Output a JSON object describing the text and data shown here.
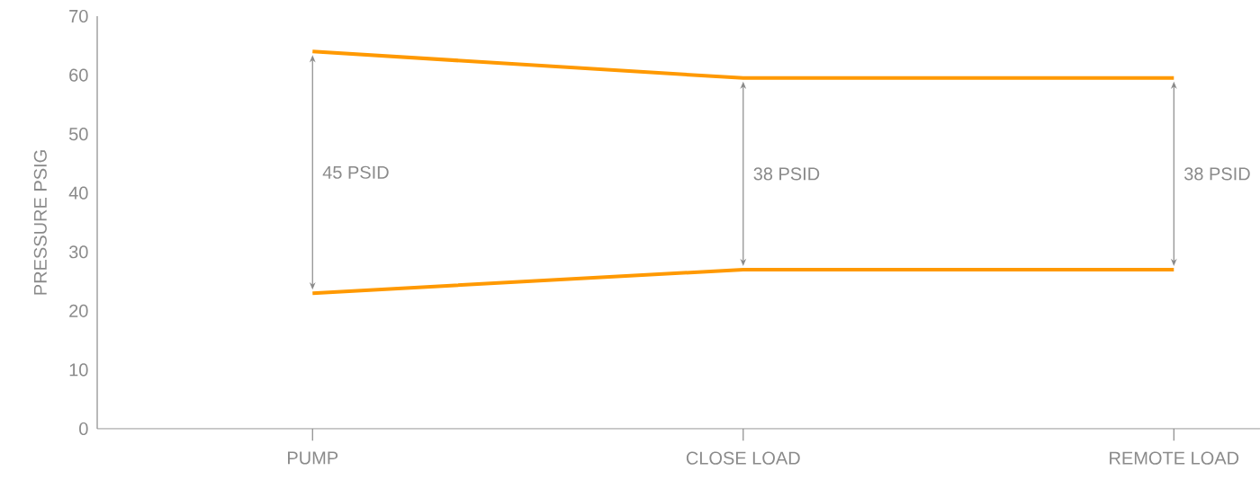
{
  "chart_data": {
    "type": "line",
    "ylabel": "PRESSURE PSIG",
    "categories": [
      "PUMP",
      "CLOSE LOAD",
      "REMOTE LOAD"
    ],
    "series": [
      {
        "color": "#ff9900",
        "values": [
          64,
          59.5,
          59.5
        ]
      },
      {
        "color": "#ff9900",
        "values": [
          23,
          27,
          27
        ]
      }
    ],
    "ylim": [
      0,
      70
    ],
    "yticks": [
      0,
      10,
      20,
      30,
      40,
      50,
      60,
      70
    ],
    "grid": false,
    "marker": "none",
    "line_style": "solid",
    "annotations": [
      "45 PSID",
      "38 PSID",
      "38 PSID"
    ]
  }
}
